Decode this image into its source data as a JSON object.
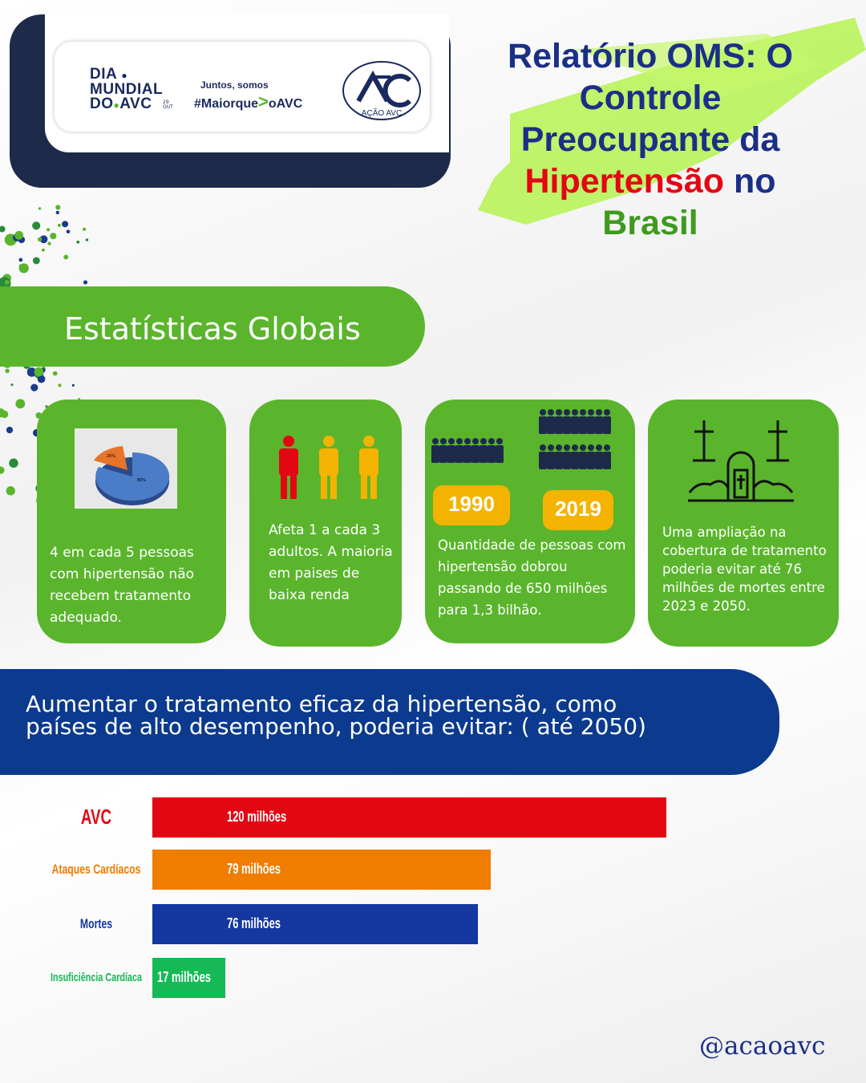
{
  "header": {
    "logo_dia": "DIA",
    "logo_mundial": "MUNDIAL",
    "logo_do": "DO",
    "logo_avc": "AVC",
    "logo_date_day": "29",
    "logo_date_month": "OUT",
    "tagline_top": "Juntos, somos",
    "tagline_hashtag": "#Maiorque",
    "tagline_gt": ">",
    "tagline_end": "oAVC",
    "acao_logo_text": "AÇÃO AVC"
  },
  "title": {
    "line1": "Relatório OMS: O",
    "line2": "Controle",
    "line3": "Preocupante da",
    "line4_red": "Hipertensão",
    "line4_rest": " no",
    "line5": "Brasil"
  },
  "section_banner": "Estatísticas Globais",
  "cards": [
    {
      "text": "4 em cada 5 pessoas com hipertensão não recebem tratamento adequado.",
      "pie_small": "20%",
      "pie_large": "80%"
    },
    {
      "text": "Afeta 1 a cada 3 adultos. A maioria em paises de baixa renda"
    },
    {
      "text": "Quantidade de pessoas com hipertensão dobrou passando de 650 milhões para 1,3 bilhão.",
      "year1": "1990",
      "year2": "2019"
    },
    {
      "text": "Uma ampliação na cobertura de tratamento poderia evitar até 76 milhões de mortes entre 2023 e 2050."
    }
  ],
  "blue_banner": {
    "line1": "Aumentar o tratamento eficaz da hipertensão, como",
    "line2": "países de alto desempenho, poderia  evitar: ( até 2050)"
  },
  "colors": {
    "green": "#5ab52c",
    "navy": "#1b2f86",
    "red": "#e30613",
    "orange": "#f07c00",
    "blue_bar": "#1437a0",
    "green_bar": "#15b956"
  },
  "chart_data": {
    "type": "bar",
    "orientation": "horizontal",
    "categories": [
      "AVC",
      "Ataques Cardíacos",
      "Mortes",
      "Insuficiência Cardíaca"
    ],
    "values": [
      120,
      79,
      76,
      17
    ],
    "value_labels": [
      "120 milhões",
      "79 milhões",
      "76 milhões",
      "17 milhões"
    ],
    "bar_colors": [
      "#e30613",
      "#f07c00",
      "#1437a0",
      "#15b956"
    ],
    "label_colors": [
      "#e30613",
      "#f07c00",
      "#1437a0",
      "#15b956"
    ],
    "xlim": [
      0,
      120
    ]
  },
  "handle": "@acaoavc"
}
